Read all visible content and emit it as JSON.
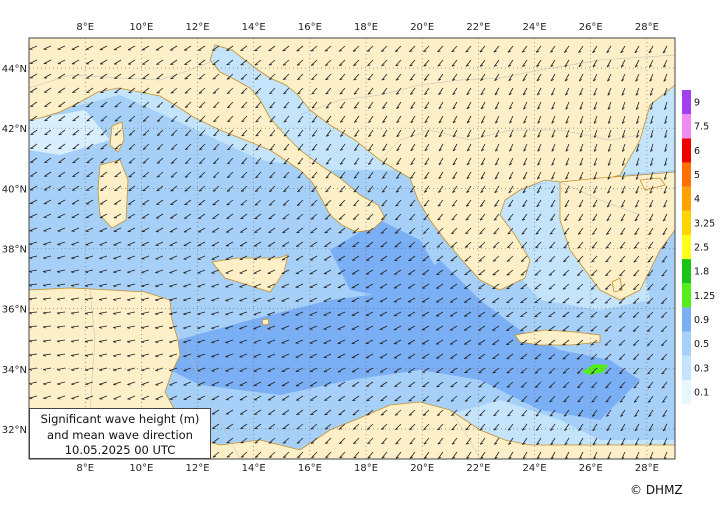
{
  "caption": {
    "line1": "Significant wave height (m)",
    "line2": "and mean wave direction",
    "line3": "10.05.2025 00  UTC"
  },
  "copyright": "© DHMZ",
  "map": {
    "lon_range": [
      6,
      29
    ],
    "lat_range": [
      31,
      45.0
    ],
    "lon_ticks": [
      "8°E",
      "10°E",
      "12°E",
      "14°E",
      "16°E",
      "18°E",
      "20°E",
      "22°E",
      "24°E",
      "26°E",
      "28°E"
    ],
    "lat_ticks": [
      "32°N",
      "34°N",
      "36°N",
      "38°N",
      "40°N",
      "42°N",
      "44°N"
    ],
    "land_color": "#fdf0c8",
    "coast_color": "#c8902a"
  },
  "legend": {
    "bins": [
      {
        "label": "0.1",
        "color": "#e8f6fd"
      },
      {
        "label": "0.3",
        "color": "#c4e4fb"
      },
      {
        "label": "0.5",
        "color": "#a7d0f9"
      },
      {
        "label": "0.9",
        "color": "#7aaef5"
      },
      {
        "label": "1.25",
        "color": "#54ee1a"
      },
      {
        "label": "1.8",
        "color": "#19c414"
      },
      {
        "label": "2.5",
        "color": "#ffff1a"
      },
      {
        "label": "3.25",
        "color": "#ffd400"
      },
      {
        "label": "4",
        "color": "#ffa200"
      },
      {
        "label": "5",
        "color": "#ff7000"
      },
      {
        "label": "6",
        "color": "#ee0000"
      },
      {
        "label": "7.5",
        "color": "#f08af4"
      },
      {
        "label": "9",
        "color": "#a040f0"
      }
    ]
  }
}
